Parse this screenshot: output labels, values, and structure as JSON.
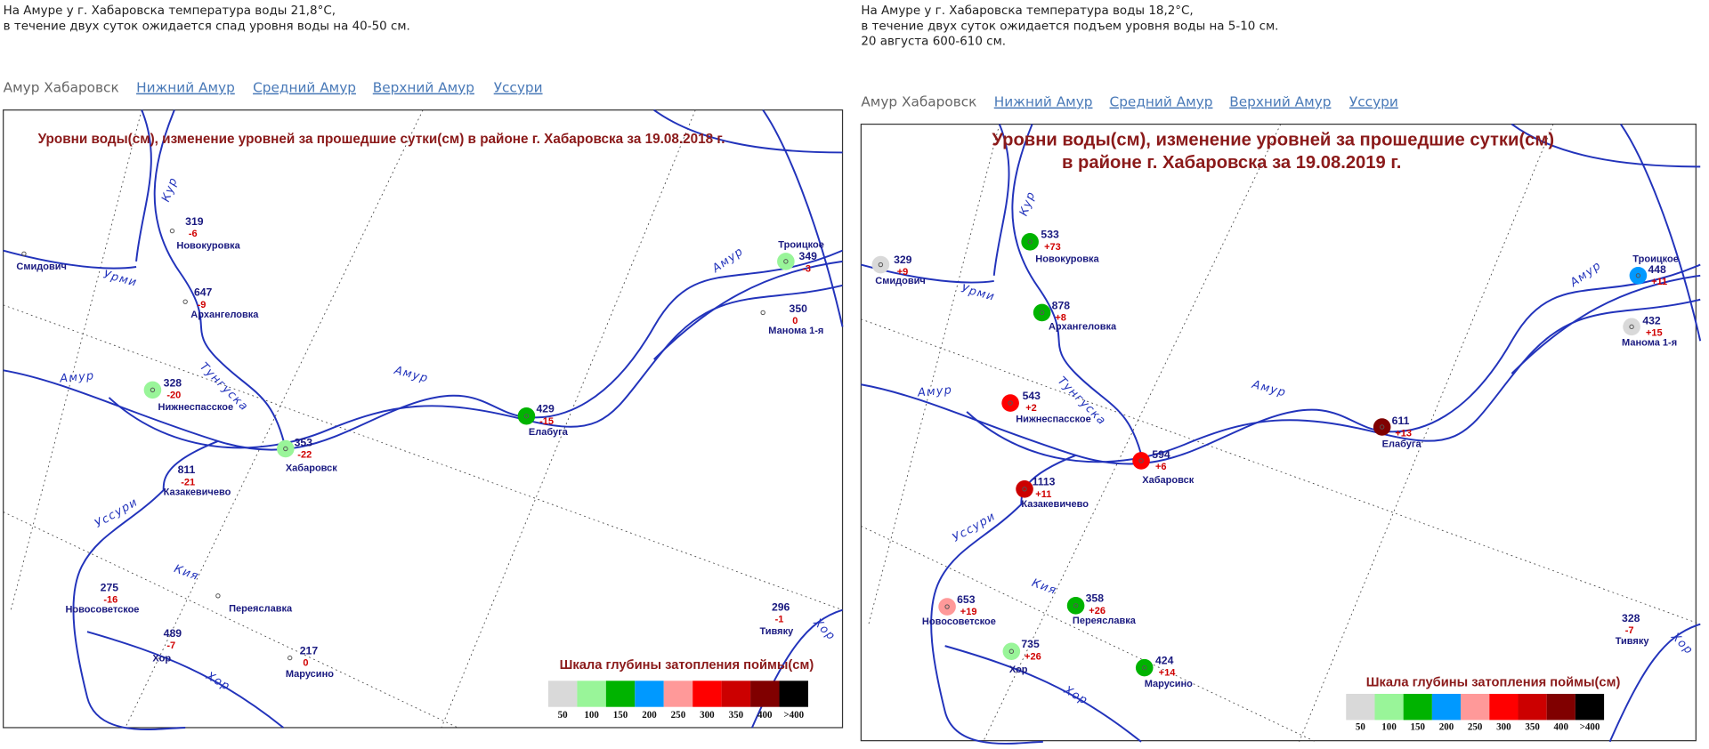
{
  "panels": [
    {
      "intro": [
        "На Амуре у г. Хабаровска температура воды 21,8°С,",
        "в течение двух суток ожидается спад уровня воды на 40-50 см."
      ],
      "nav": {
        "current": "Амур Хабаровск",
        "links": [
          "Нижний Амур",
          "Средний Амур",
          "Верхний Амур",
          "Уссури"
        ]
      },
      "map": {
        "title": [
          "Уровни воды(см), изменение уровней за прошедшие сутки(см) в районе г. Хабаровска за 19.08.2018 г."
        ],
        "stations": [
          {
            "name": "Новокуровка",
            "level": 319,
            "change": "-6"
          },
          {
            "name": "Смидович"
          },
          {
            "name": "Архангеловка",
            "level": 647,
            "change": "-9"
          },
          {
            "name": "Нижнеспасское",
            "level": 328,
            "change": "-20",
            "color": "#99f599"
          },
          {
            "name": "Хабаровск",
            "level": 353,
            "change": "-22",
            "color": "#99f599"
          },
          {
            "name": "Казакевичево",
            "level": 811,
            "change": "-21"
          },
          {
            "name": "Елабуга",
            "level": 429,
            "change": "-15",
            "color": "#00b300"
          },
          {
            "name": "Троицкое",
            "level": 349,
            "change": "-3",
            "color": "#99f599"
          },
          {
            "name": "Манома 1-я",
            "level": 350,
            "change": "0"
          },
          {
            "name": "Новосоветское",
            "level": 275,
            "change": "-16"
          },
          {
            "name": "Переяславка"
          },
          {
            "name": "Хор",
            "level": 489,
            "change": "-7"
          },
          {
            "name": "Марусино",
            "level": 217,
            "change": "0"
          },
          {
            "name": "Тивяку",
            "level": 296,
            "change": "-1"
          }
        ],
        "rivers": [
          "Кур",
          "Урми",
          "Тунгуска",
          "Амур",
          "Амур",
          "Амур",
          "Уссури",
          "Кия",
          "Хор",
          "Хор"
        ],
        "legend": {
          "title": "Шкала глубины затопления поймы(см)",
          "labels": [
            "50",
            "100",
            "150",
            "200",
            "250",
            "300",
            "350",
            "400",
            ">400"
          ],
          "colors": [
            "#d9d9d9",
            "#99f599",
            "#00b300",
            "#0099ff",
            "#ff9999",
            "#ff0000",
            "#cc0000",
            "#800000",
            "#000000"
          ]
        }
      }
    },
    {
      "intro": [
        "На Амуре у г. Хабаровска температура воды 18,2°С,",
        "в течение двух суток ожидается подъем уровня воды на 5-10 см.",
        "20 августа 600-610 см."
      ],
      "nav": {
        "current": "Амур Хабаровск",
        "links": [
          "Нижний Амур",
          "Средний Амур",
          "Верхний Амур",
          "Уссури"
        ]
      },
      "map": {
        "title": [
          "Уровни воды(см), изменение уровней за прошедшие сутки(см)",
          "в районе г. Хабаровска за 19.08.2019 г."
        ],
        "stations": [
          {
            "name": "Новокуровка",
            "level": 533,
            "change": "+73",
            "color": "#00b300"
          },
          {
            "name": "Смидович",
            "level": 329,
            "change": "+9",
            "color": "#d9d9d9"
          },
          {
            "name": "Архангеловка",
            "level": 878,
            "change": "+8",
            "color": "#00b300"
          },
          {
            "name": "Нижнеспасское",
            "level": 543,
            "change": "+2",
            "color": "#ff0000"
          },
          {
            "name": "Хабаровск",
            "level": 594,
            "change": "+6",
            "color": "#ff0000"
          },
          {
            "name": "Казакевичево",
            "level": 1113,
            "change": "+11",
            "color": "#cc0000"
          },
          {
            "name": "Елабуга",
            "level": 611,
            "change": "+13",
            "color": "#800000"
          },
          {
            "name": "Троицкое",
            "level": 448,
            "change": "+11",
            "color": "#0099ff"
          },
          {
            "name": "Манома 1-я",
            "level": 432,
            "change": "+15",
            "color": "#d9d9d9"
          },
          {
            "name": "Новосоветское",
            "level": 653,
            "change": "+19",
            "color": "#ff9999"
          },
          {
            "name": "Переяславка",
            "level": 358,
            "change": "+26",
            "color": "#00b300"
          },
          {
            "name": "Хор",
            "level": 735,
            "change": "+26",
            "color": "#99f599"
          },
          {
            "name": "Марусино",
            "level": 424,
            "change": "+14",
            "color": "#00b300"
          },
          {
            "name": "Тивяку",
            "level": 328,
            "change": "-7"
          }
        ],
        "rivers": [
          "Кур",
          "Урми",
          "Тунгуска",
          "Амур",
          "Амур",
          "Амур",
          "Уссури",
          "Кия",
          "Хор",
          "Хор"
        ],
        "legend": {
          "title": "Шкала глубины затопления поймы(см)",
          "labels": [
            "50",
            "100",
            "150",
            "200",
            "250",
            "300",
            "350",
            "400",
            ">400"
          ],
          "colors": [
            "#d9d9d9",
            "#99f599",
            "#00b300",
            "#0099ff",
            "#ff9999",
            "#ff0000",
            "#cc0000",
            "#800000",
            "#000000"
          ]
        }
      }
    }
  ]
}
